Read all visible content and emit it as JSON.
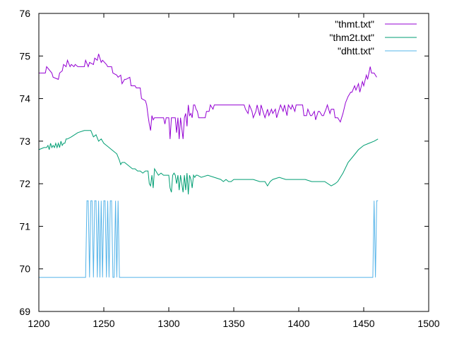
{
  "chart_data": {
    "type": "line",
    "title": "",
    "xlabel": "",
    "ylabel": "",
    "xlim": [
      1200,
      1500
    ],
    "ylim": [
      69,
      76
    ],
    "x_ticks": [
      1200,
      1250,
      1300,
      1350,
      1400,
      1450,
      1500
    ],
    "y_ticks": [
      69,
      70,
      71,
      72,
      73,
      74,
      75,
      76
    ],
    "grid": false,
    "legend_position": "top-right",
    "series": [
      {
        "name": "\"thmt.txt\"",
        "color": "#9400d3",
        "x": [
          1200,
          1205,
          1206,
          1210,
          1211,
          1215,
          1216,
          1218,
          1219,
          1221,
          1222,
          1224,
          1225,
          1227,
          1228,
          1230,
          1231,
          1235,
          1236,
          1238,
          1239,
          1242,
          1243,
          1245,
          1246,
          1248,
          1249,
          1252,
          1253,
          1256,
          1257,
          1260,
          1261,
          1263,
          1264,
          1266,
          1267,
          1270,
          1271,
          1274,
          1275,
          1278,
          1279,
          1282,
          1283,
          1284,
          1285,
          1286,
          1287,
          1288,
          1289,
          1290,
          1291,
          1292,
          1296,
          1297,
          1298,
          1300,
          1301,
          1302,
          1303,
          1304,
          1305,
          1306,
          1307,
          1308,
          1309,
          1310,
          1311,
          1312,
          1313,
          1314,
          1315,
          1316,
          1317,
          1318,
          1319,
          1320,
          1321,
          1322,
          1323,
          1325,
          1326,
          1328,
          1329,
          1331,
          1332,
          1334,
          1335,
          1338,
          1339,
          1342,
          1343,
          1346,
          1347,
          1350,
          1351,
          1355,
          1356,
          1358,
          1359,
          1361,
          1362,
          1364,
          1365,
          1367,
          1368,
          1370,
          1371,
          1373,
          1374,
          1376,
          1377,
          1379,
          1380,
          1382,
          1383,
          1385,
          1386,
          1388,
          1389,
          1391,
          1392,
          1394,
          1395,
          1397,
          1398,
          1400,
          1401,
          1403,
          1404,
          1406,
          1407,
          1409,
          1410,
          1412,
          1413,
          1415,
          1416,
          1418,
          1419,
          1421,
          1422,
          1424,
          1425,
          1427,
          1428,
          1430,
          1432,
          1434,
          1436,
          1438,
          1440,
          1441,
          1443,
          1444,
          1446,
          1447,
          1449,
          1450,
          1452,
          1453,
          1455,
          1456,
          1458,
          1460
        ],
        "values": [
          74.6,
          74.6,
          74.75,
          74.6,
          74.5,
          74.45,
          74.6,
          74.65,
          74.8,
          74.75,
          74.9,
          74.75,
          74.8,
          74.75,
          74.8,
          74.75,
          74.75,
          74.75,
          74.9,
          74.75,
          74.85,
          74.8,
          74.95,
          74.9,
          75.05,
          74.85,
          74.9,
          74.8,
          74.75,
          74.75,
          74.6,
          74.55,
          74.5,
          74.55,
          74.35,
          74.45,
          74.45,
          74.5,
          74.3,
          74.3,
          74.25,
          74.25,
          74.0,
          73.95,
          73.85,
          73.6,
          73.4,
          73.25,
          73.6,
          73.5,
          73.55,
          73.55,
          73.55,
          73.55,
          73.55,
          73.4,
          73.55,
          73.55,
          73.05,
          73.55,
          73.55,
          73.55,
          73.55,
          73.2,
          73.55,
          73.05,
          73.55,
          73.3,
          73.05,
          73.55,
          73.65,
          73.35,
          73.85,
          73.6,
          73.65,
          73.55,
          73.85,
          73.85,
          73.75,
          73.7,
          73.55,
          73.55,
          73.55,
          73.55,
          73.7,
          73.7,
          73.85,
          73.75,
          73.85,
          73.85,
          73.85,
          73.85,
          73.85,
          73.85,
          73.85,
          73.85,
          73.85,
          73.85,
          73.85,
          73.85,
          73.75,
          73.65,
          73.85,
          73.7,
          73.55,
          73.7,
          73.85,
          73.6,
          73.85,
          73.65,
          73.55,
          73.75,
          73.6,
          73.75,
          73.65,
          73.75,
          73.55,
          73.75,
          73.85,
          73.7,
          73.85,
          73.6,
          73.85,
          73.75,
          73.85,
          73.7,
          73.85,
          73.85,
          73.85,
          73.85,
          73.6,
          73.6,
          73.75,
          73.6,
          73.6,
          73.7,
          73.5,
          73.7,
          73.7,
          73.6,
          73.6,
          73.75,
          73.85,
          73.65,
          73.75,
          73.75,
          73.55,
          73.55,
          73.45,
          73.65,
          73.9,
          74.05,
          74.15,
          74.15,
          74.3,
          74.2,
          74.35,
          74.15,
          74.4,
          74.3,
          74.55,
          74.45,
          74.75,
          74.6,
          74.6,
          74.5
        ]
      },
      {
        "name": "\"thm2t.txt\"",
        "color": "#009e73",
        "x": [
          1200,
          1204,
          1206,
          1207,
          1208,
          1209,
          1210,
          1211,
          1212,
          1213,
          1214,
          1215,
          1216,
          1217,
          1218,
          1219,
          1220,
          1221,
          1222,
          1225,
          1230,
          1235,
          1240,
          1242,
          1244,
          1246,
          1248,
          1250,
          1252,
          1254,
          1256,
          1258,
          1260,
          1262,
          1263,
          1264,
          1266,
          1268,
          1270,
          1272,
          1274,
          1276,
          1278,
          1280,
          1282,
          1284,
          1285,
          1286,
          1287,
          1288,
          1289,
          1290,
          1292,
          1294,
          1296,
          1298,
          1300,
          1301,
          1302,
          1303,
          1304,
          1305,
          1306,
          1307,
          1308,
          1309,
          1310,
          1311,
          1312,
          1313,
          1314,
          1315,
          1316,
          1317,
          1318,
          1319,
          1320,
          1321,
          1322,
          1325,
          1330,
          1335,
          1340,
          1342,
          1344,
          1346,
          1348,
          1350,
          1355,
          1360,
          1365,
          1370,
          1374,
          1376,
          1378,
          1380,
          1385,
          1390,
          1395,
          1400,
          1405,
          1410,
          1415,
          1420,
          1425,
          1428,
          1430,
          1434,
          1438,
          1442,
          1446,
          1450,
          1454,
          1458,
          1461
        ],
        "values": [
          72.8,
          72.85,
          72.85,
          72.9,
          72.8,
          72.95,
          72.85,
          72.9,
          72.85,
          72.95,
          72.85,
          72.95,
          72.85,
          73.0,
          72.9,
          72.95,
          72.95,
          73.05,
          73.05,
          73.1,
          73.2,
          73.25,
          73.25,
          73.1,
          73.15,
          73.0,
          73.05,
          72.95,
          72.9,
          72.85,
          72.8,
          72.75,
          72.7,
          72.55,
          72.45,
          72.5,
          72.5,
          72.45,
          72.4,
          72.35,
          72.35,
          72.3,
          72.3,
          72.25,
          72.3,
          72.3,
          72.0,
          71.95,
          72.2,
          71.9,
          72.35,
          72.3,
          72.2,
          72.25,
          72.2,
          72.2,
          72.2,
          71.9,
          71.8,
          72.2,
          72.25,
          72.2,
          72.0,
          72.2,
          71.85,
          72.2,
          72.0,
          71.8,
          72.2,
          71.85,
          72.25,
          71.75,
          72.2,
          72.1,
          71.9,
          72.2,
          72.15,
          72.2,
          72.2,
          72.15,
          72.2,
          72.15,
          72.1,
          72.05,
          72.1,
          72.05,
          72.05,
          72.1,
          72.1,
          72.1,
          72.1,
          72.05,
          72.05,
          71.95,
          72.05,
          72.1,
          72.15,
          72.1,
          72.1,
          72.1,
          72.1,
          72.05,
          72.05,
          72.05,
          71.95,
          72.0,
          72.05,
          72.25,
          72.5,
          72.65,
          72.8,
          72.9,
          72.95,
          73.0,
          73.05
        ]
      },
      {
        "name": "\"dhtt.txt\"",
        "color": "#56b4e9",
        "x": [
          1200,
          1236,
          1237,
          1238,
          1239,
          1240,
          1241,
          1242,
          1243,
          1244,
          1245,
          1246,
          1247,
          1248,
          1249,
          1250,
          1251,
          1252,
          1253,
          1254,
          1255,
          1256,
          1257,
          1258,
          1259,
          1260,
          1261,
          1262,
          1263,
          1264,
          1300,
          1350,
          1400,
          1457,
          1458,
          1459,
          1460,
          1461
        ],
        "values": [
          69.8,
          69.8,
          71.6,
          71.6,
          69.8,
          71.6,
          71.6,
          69.8,
          71.6,
          71.6,
          69.8,
          71.6,
          69.8,
          71.6,
          69.8,
          71.6,
          71.6,
          69.8,
          71.6,
          69.8,
          71.6,
          71.6,
          69.8,
          69.8,
          71.6,
          69.8,
          71.6,
          69.8,
          69.8,
          69.8,
          69.8,
          69.8,
          69.8,
          69.8,
          71.6,
          69.8,
          71.6,
          71.6
        ]
      }
    ]
  }
}
